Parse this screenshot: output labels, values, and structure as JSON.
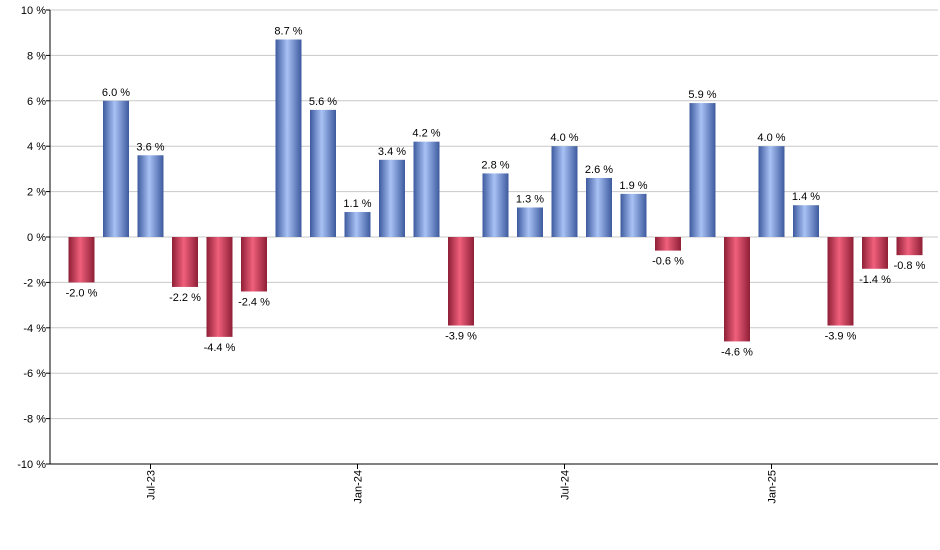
{
  "chart_data": {
    "type": "bar",
    "title": "",
    "xlabel": "",
    "ylabel": "",
    "ylim": [
      -10,
      10
    ],
    "y_ticks": [
      {
        "value": -10,
        "label": "-10 %"
      },
      {
        "value": -8,
        "label": "-8 %"
      },
      {
        "value": -6,
        "label": "-6 %"
      },
      {
        "value": -4,
        "label": "-4 %"
      },
      {
        "value": -2,
        "label": "-2 %"
      },
      {
        "value": 0,
        "label": "0 %"
      },
      {
        "value": 2,
        "label": "2 %"
      },
      {
        "value": 4,
        "label": "4 %"
      },
      {
        "value": 6,
        "label": "6 %"
      },
      {
        "value": 8,
        "label": "8 %"
      },
      {
        "value": 10,
        "label": "10 %"
      }
    ],
    "x_ticks": [
      {
        "index": 2,
        "label": "Jul-23"
      },
      {
        "index": 8,
        "label": "Jan-24"
      },
      {
        "index": 14,
        "label": "Jul-24"
      },
      {
        "index": 20,
        "label": "Jan-25"
      }
    ],
    "grid": true,
    "legend": "none",
    "colors": {
      "positive": "#7b9de0",
      "negative": "#c8405a"
    },
    "values": [
      -2.0,
      6.0,
      3.6,
      -2.2,
      -4.4,
      -2.4,
      8.7,
      5.6,
      1.1,
      3.4,
      4.2,
      -3.9,
      2.8,
      1.3,
      4.0,
      2.6,
      1.9,
      -0.6,
      5.9,
      -4.6,
      4.0,
      1.4,
      -3.9,
      -1.4,
      -0.8
    ],
    "labels": [
      "-2.0 %",
      "6.0 %",
      "3.6 %",
      "-2.2 %",
      "-4.4 %",
      "-2.4 %",
      "8.7 %",
      "5.6 %",
      "1.1 %",
      "3.4 %",
      "4.2 %",
      "-3.9 %",
      "2.8 %",
      "1.3 %",
      "4.0 %",
      "2.6 %",
      "1.9 %",
      "-0.6 %",
      "5.9 %",
      "-4.6 %",
      "4.0 %",
      "1.4 %",
      "-3.9 %",
      "-1.4 %",
      "-0.8 %"
    ]
  }
}
